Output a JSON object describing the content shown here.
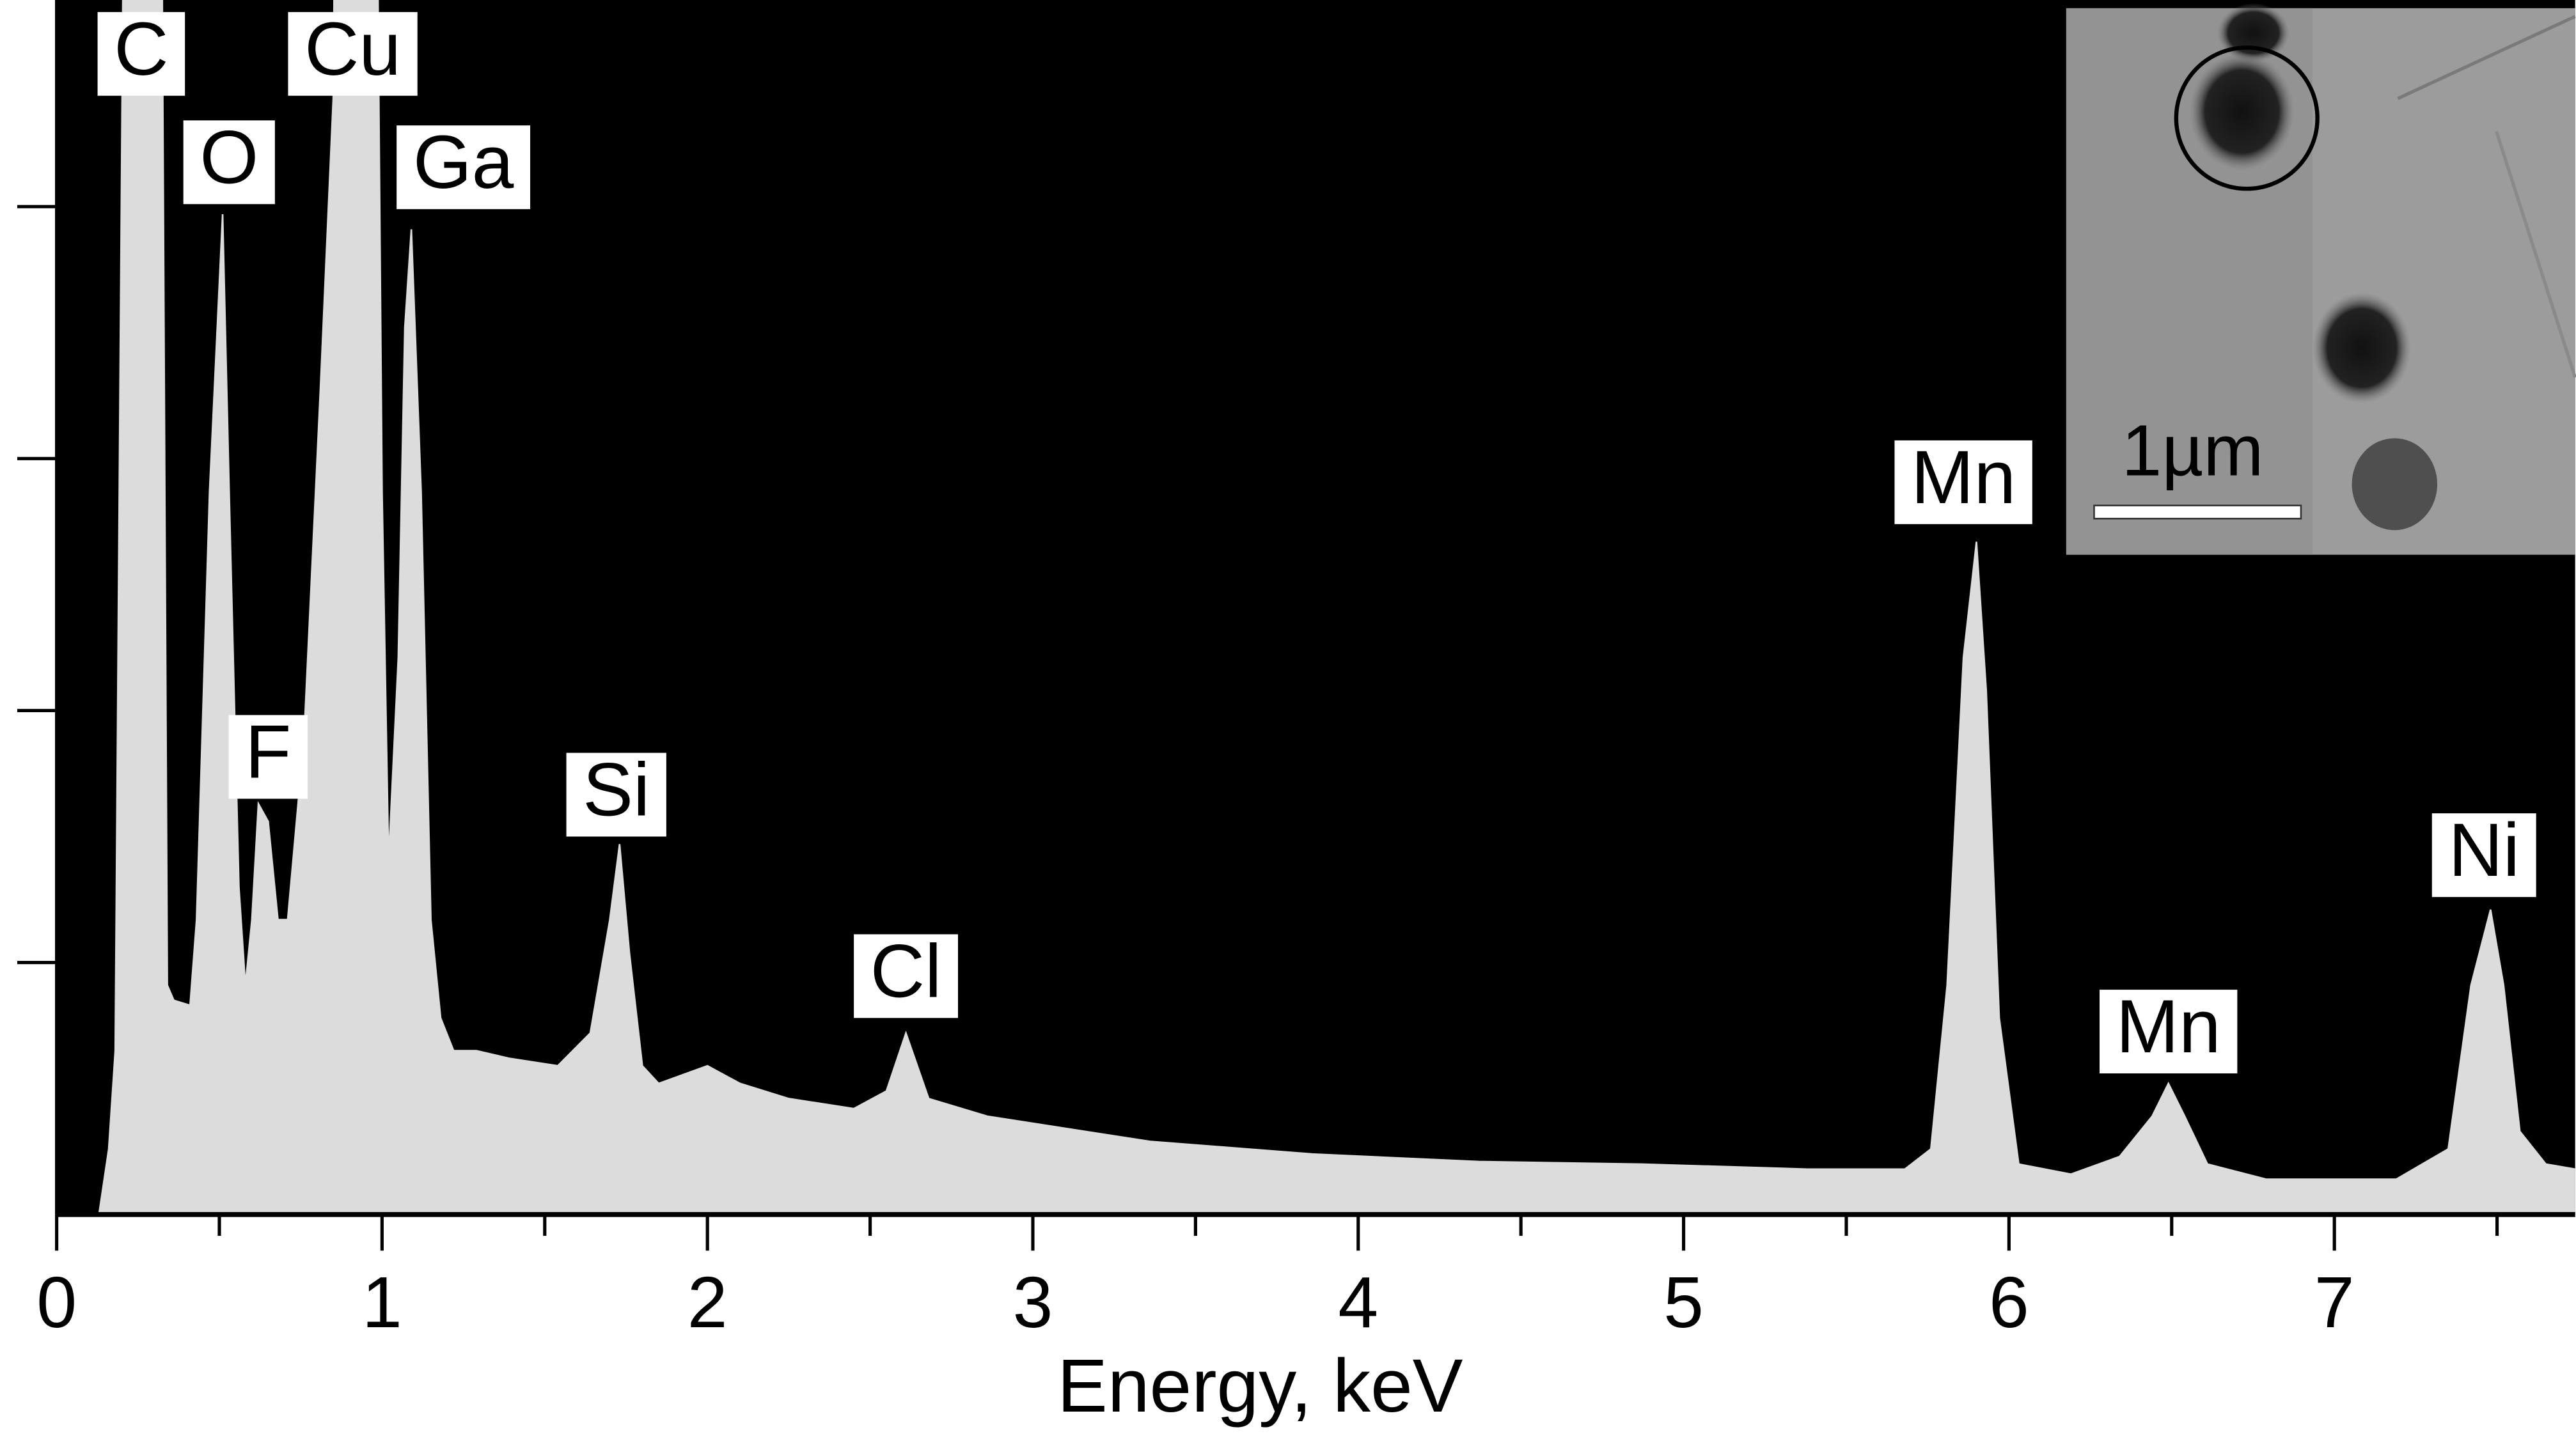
{
  "chart_data": {
    "type": "area",
    "xlabel": "Energy, keV",
    "x": [
      0.13,
      0.16,
      0.18,
      0.21,
      0.32,
      0.34,
      0.36,
      0.41,
      0.43,
      0.47,
      0.51,
      0.53,
      0.56,
      0.58,
      0.6,
      0.62,
      0.65,
      0.68,
      0.71,
      0.76,
      0.81,
      0.85,
      0.86,
      0.98,
      1.0,
      1.02,
      1.05,
      1.07,
      1.09,
      1.12,
      1.15,
      1.18,
      1.22,
      1.29,
      1.39,
      1.54,
      1.64,
      1.7,
      1.73,
      1.76,
      1.8,
      1.85,
      2.0,
      2.1,
      2.25,
      2.45,
      2.55,
      2.61,
      2.68,
      2.86,
      3.36,
      3.86,
      4.37,
      4.87,
      5.38,
      5.68,
      5.76,
      5.81,
      5.86,
      5.9,
      5.93,
      5.97,
      6.03,
      6.19,
      6.34,
      6.44,
      6.49,
      6.54,
      6.61,
      6.79,
      7.19,
      7.35,
      7.42,
      7.48,
      7.52,
      7.57,
      7.65,
      7.74
    ],
    "values": [
      0,
      0.26,
      0.65,
      6,
      6,
      0.91,
      0.85,
      0.83,
      1.17,
      2.87,
      3.97,
      2.87,
      1.3,
      0.91,
      1.17,
      1.63,
      1.56,
      1.17,
      1.17,
      1.89,
      3.26,
      4.43,
      6,
      6,
      2.87,
      1.4,
      2.21,
      3.52,
      3.91,
      2.87,
      1.17,
      0.78,
      0.65,
      0.65,
      0.62,
      0.59,
      0.72,
      1.17,
      1.47,
      1.04,
      0.59,
      0.52,
      0.59,
      0.52,
      0.46,
      0.42,
      0.49,
      0.72,
      0.46,
      0.39,
      0.29,
      0.24,
      0.21,
      0.2,
      0.18,
      0.18,
      0.26,
      0.91,
      2.21,
      2.67,
      2.08,
      0.78,
      0.2,
      0.16,
      0.23,
      0.39,
      0.52,
      0.39,
      0.2,
      0.14,
      0.14,
      0.26,
      0.91,
      1.21,
      0.91,
      0.33,
      0.2,
      0.18
    ],
    "color": "#dcdcdc",
    "background": "#000000",
    "xlim": [
      0,
      7.74
    ],
    "ylim": [
      0,
      4.82
    ],
    "xticks": [
      0,
      1,
      2,
      3,
      4,
      5,
      6,
      7
    ],
    "xminorticks": [
      0.5,
      1.5,
      2.5,
      3.5,
      4.5,
      5.5,
      6.5,
      7.5
    ],
    "yticks": [
      1,
      2,
      3,
      4
    ],
    "annotations": [
      {
        "text": "C",
        "x": 0.26,
        "y": 4.44
      },
      {
        "text": "O",
        "x": 0.53,
        "y": 4.01
      },
      {
        "text": "Cu",
        "x": 0.91,
        "y": 4.44
      },
      {
        "text": "Ga",
        "x": 1.25,
        "y": 3.99
      },
      {
        "text": "F",
        "x": 0.65,
        "y": 1.65
      },
      {
        "text": "Si",
        "x": 1.72,
        "y": 1.5
      },
      {
        "text": "Cl",
        "x": 2.61,
        "y": 0.78
      },
      {
        "text": "Mn",
        "x": 5.86,
        "y": 2.74
      },
      {
        "text": "Mn",
        "x": 6.49,
        "y": 0.56
      },
      {
        "text": "Ni",
        "x": 7.46,
        "y": 1.26
      }
    ]
  },
  "inset": {
    "scale_label": "1µm"
  }
}
